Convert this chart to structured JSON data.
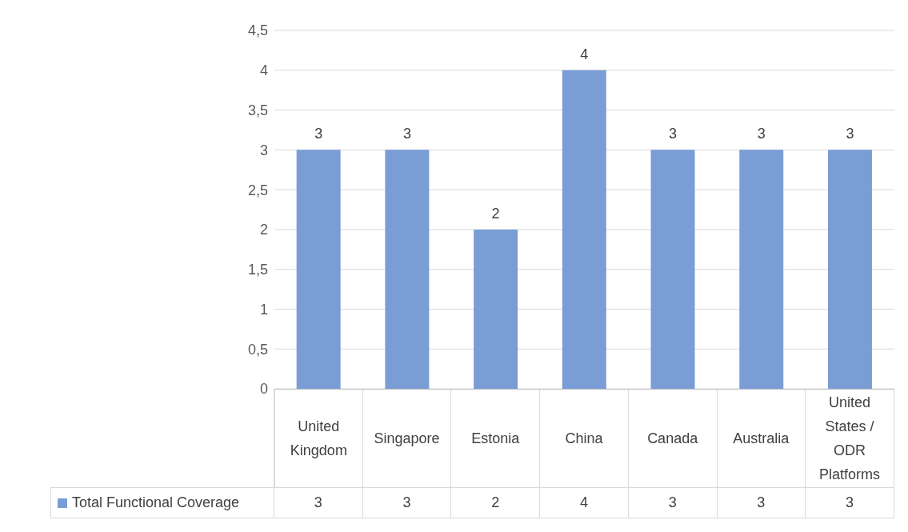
{
  "chart_data": {
    "type": "bar",
    "categories": [
      "United Kingdom",
      "Singapore",
      "Estonia",
      "China",
      "Canada",
      "Australia",
      "United States / ODR Platforms"
    ],
    "series": [
      {
        "name": "Total Functional Coverage",
        "color": "#7a9dd6",
        "values": [
          3,
          3,
          2,
          4,
          3,
          3,
          3
        ],
        "value_labels": [
          "3",
          "3",
          "2",
          "4",
          "3",
          "3",
          "3"
        ]
      }
    ],
    "ylim": [
      0,
      4.5
    ],
    "yticks": [
      0,
      {
        "value": 0.5,
        "label": "0,5"
      },
      1,
      {
        "value": 1.5,
        "label": "1,5"
      },
      2,
      {
        "value": 2.5,
        "label": "2,5"
      },
      3,
      {
        "value": 3.5,
        "label": "3,5"
      },
      4,
      {
        "value": 4.5,
        "label": "4,5"
      }
    ],
    "annotations": [
      "3",
      "3",
      "2",
      "4",
      "3",
      "3",
      "3"
    ],
    "grid": "y",
    "data_labels": true,
    "legend": "bottom"
  }
}
